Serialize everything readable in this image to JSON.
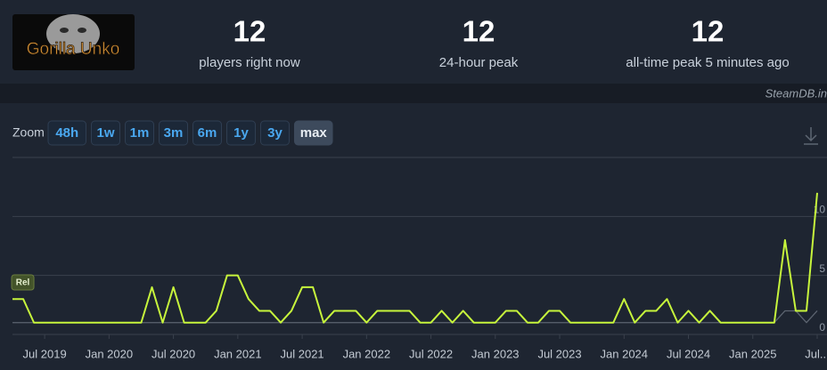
{
  "header": {
    "game_name": "Gorilla Unko",
    "stats": [
      {
        "value": "12",
        "label": "players right now"
      },
      {
        "value": "12",
        "label": "24-hour peak"
      },
      {
        "value": "12",
        "label": "all-time peak 5 minutes ago"
      }
    ],
    "watermark": "SteamDB.in"
  },
  "zoom": {
    "label": "Zoom",
    "options": [
      "48h",
      "1w",
      "1m",
      "3m",
      "6m",
      "1y",
      "3y",
      "max"
    ],
    "active": "max"
  },
  "chart_data": {
    "type": "line",
    "x": [
      "2019-04",
      "2019-05",
      "2019-06",
      "2019-07",
      "2019-08",
      "2019-09",
      "2019-10",
      "2019-11",
      "2019-12",
      "2020-01",
      "2020-02",
      "2020-03",
      "2020-04",
      "2020-05",
      "2020-06",
      "2020-07",
      "2020-08",
      "2020-09",
      "2020-10",
      "2020-11",
      "2020-12",
      "2021-01",
      "2021-02",
      "2021-03",
      "2021-04",
      "2021-05",
      "2021-06",
      "2021-07",
      "2021-08",
      "2021-09",
      "2021-10",
      "2021-11",
      "2021-12",
      "2022-01",
      "2022-02",
      "2022-03",
      "2022-04",
      "2022-05",
      "2022-06",
      "2022-07",
      "2022-08",
      "2022-09",
      "2022-10",
      "2022-11",
      "2022-12",
      "2023-01",
      "2023-02",
      "2023-03",
      "2023-04",
      "2023-05",
      "2023-06",
      "2023-07",
      "2023-08",
      "2023-09",
      "2023-10",
      "2023-11",
      "2023-12",
      "2024-01",
      "2024-02",
      "2024-03",
      "2024-04",
      "2024-05",
      "2024-06",
      "2024-07",
      "2024-08",
      "2024-09",
      "2024-10",
      "2024-11",
      "2024-12",
      "2025-01",
      "2025-02",
      "2025-03",
      "2025-04",
      "2025-05",
      "2025-06",
      "2025-07"
    ],
    "series": [
      {
        "color": "#5c6470",
        "values": [
          1,
          1,
          1,
          1,
          1,
          1,
          1,
          1,
          1,
          1,
          1,
          1,
          1,
          1,
          1,
          1,
          1,
          1,
          1,
          1,
          1,
          1,
          1,
          1,
          1,
          1,
          1,
          1,
          1,
          1,
          1,
          1,
          1,
          1,
          1,
          1,
          1,
          1,
          1,
          1,
          1,
          1,
          1,
          1,
          1,
          1,
          1,
          1,
          1,
          1,
          1,
          1,
          1,
          1,
          1,
          1,
          1,
          1,
          1,
          1,
          1,
          1,
          1,
          1,
          1,
          1,
          1,
          1,
          1,
          1,
          1,
          1,
          2,
          2,
          1,
          2
        ]
      },
      {
        "color": "#c7f53c",
        "values": [
          3,
          3,
          1,
          1,
          1,
          1,
          1,
          1,
          1,
          1,
          1,
          1,
          1,
          4,
          1,
          4,
          1,
          1,
          1,
          2,
          5,
          5,
          3,
          2,
          2,
          1,
          2,
          4,
          4,
          1,
          2,
          2,
          2,
          1,
          2,
          2,
          2,
          2,
          1,
          1,
          2,
          1,
          2,
          1,
          1,
          1,
          2,
          2,
          1,
          1,
          2,
          2,
          1,
          1,
          1,
          1,
          1,
          3,
          1,
          2,
          2,
          3,
          1,
          2,
          1,
          2,
          1,
          1,
          1,
          1,
          1,
          1,
          8,
          2,
          2,
          12
        ]
      }
    ],
    "xlim": [
      "2019-04",
      "2025-07"
    ],
    "xticks": [
      {
        "value": "2019-07",
        "label": "Jul 2019"
      },
      {
        "value": "2020-01",
        "label": "Jan 2020"
      },
      {
        "value": "2020-07",
        "label": "Jul 2020"
      },
      {
        "value": "2021-01",
        "label": "Jan 2021"
      },
      {
        "value": "2021-07",
        "label": "Jul 2021"
      },
      {
        "value": "2022-01",
        "label": "Jan 2022"
      },
      {
        "value": "2022-07",
        "label": "Jul 2022"
      },
      {
        "value": "2023-01",
        "label": "Jan 2023"
      },
      {
        "value": "2023-07",
        "label": "Jul 2023"
      },
      {
        "value": "2024-01",
        "label": "Jan 2024"
      },
      {
        "value": "2024-07",
        "label": "Jul 2024"
      },
      {
        "value": "2025-01",
        "label": "Jan 2025"
      },
      {
        "value": "2025-07",
        "label": "Jul..."
      }
    ],
    "ylim": [
      0,
      15
    ],
    "yticks": [
      0,
      5,
      10
    ],
    "grid": true,
    "annotations": [
      {
        "x": "2019-05",
        "text": "Rel"
      }
    ]
  }
}
